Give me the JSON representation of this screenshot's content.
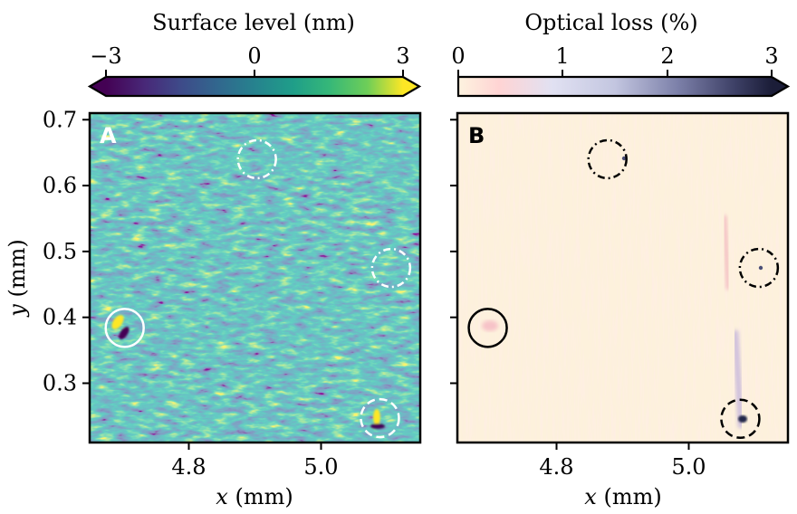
{
  "chart_data": [
    {
      "type": "heatmap",
      "panel_label": "A",
      "colorbar": {
        "title": "Surface level (nm)",
        "ticks": [
          -3,
          0,
          3
        ],
        "tick_labels": [
          "−3",
          "0",
          "3"
        ],
        "range": [
          -3,
          3
        ],
        "colormap": "viridis",
        "extend": "both"
      },
      "xlabel_var": "x",
      "xlabel_unit": " (mm)",
      "ylabel_var": "y",
      "ylabel_unit": " (mm)",
      "xlim": [
        4.65,
        5.15
      ],
      "ylim": [
        0.21,
        0.71
      ],
      "xticks": [
        4.8,
        5.0
      ],
      "xtick_labels": [
        "4.8",
        "5.0"
      ],
      "yticks": [
        0.3,
        0.4,
        0.5,
        0.6,
        0.7
      ],
      "ytick_labels": [
        "0.3",
        "0.4",
        "0.5",
        "0.6",
        "0.7"
      ],
      "markers": [
        {
          "x": 4.703,
          "y": 0.384,
          "style": "solid",
          "color": "#ffffff"
        },
        {
          "x": 4.903,
          "y": 0.64,
          "style": "dashdot",
          "color": "#ffffff"
        },
        {
          "x": 5.106,
          "y": 0.475,
          "style": "dashdot",
          "color": "#ffffff"
        },
        {
          "x": 5.089,
          "y": 0.247,
          "style": "dashed",
          "color": "#ffffff"
        }
      ]
    },
    {
      "type": "heatmap",
      "panel_label": "B",
      "colorbar": {
        "title": "Optical loss (%)",
        "ticks": [
          0,
          1,
          2,
          3
        ],
        "tick_labels": [
          "0",
          "1",
          "2",
          "3"
        ],
        "range": [
          0,
          3
        ],
        "colormap": "rose-lavender-navy",
        "extend": "max"
      },
      "xlabel_var": "x",
      "xlabel_unit": " (mm)",
      "xlim": [
        4.65,
        5.15
      ],
      "ylim": [
        0.21,
        0.71
      ],
      "xticks": [
        4.8,
        5.0
      ],
      "xtick_labels": [
        "4.8",
        "5.0"
      ],
      "yticks": [
        0.3,
        0.4,
        0.5,
        0.6,
        0.7
      ],
      "markers": [
        {
          "x": 4.696,
          "y": 0.384,
          "style": "solid",
          "color": "#000000"
        },
        {
          "x": 4.877,
          "y": 0.64,
          "style": "dashdot",
          "color": "#000000"
        },
        {
          "x": 5.106,
          "y": 0.475,
          "style": "dashdot",
          "color": "#000000"
        },
        {
          "x": 5.078,
          "y": 0.246,
          "style": "dashed",
          "color": "#000000"
        }
      ]
    }
  ]
}
